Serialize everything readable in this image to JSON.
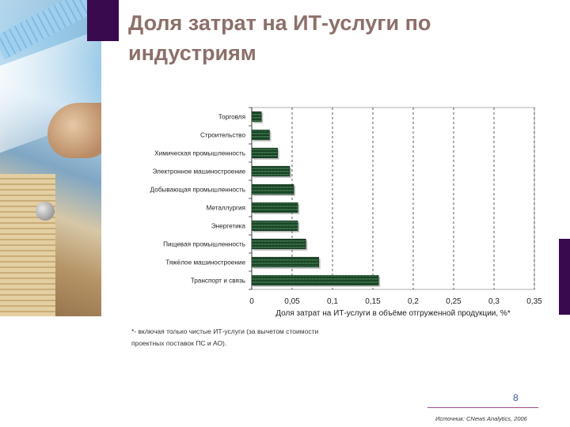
{
  "title": "Доля затрат на ИТ-услуги по индустриям",
  "chart_data": {
    "type": "bar",
    "orientation": "horizontal",
    "categories": [
      "Торговля",
      "Строительство",
      "Химическая промышленность",
      "Электронное машиностроение",
      "Добывающая промышленность",
      "Металлургия",
      "Энергетика",
      "Пищевая промышленность",
      "Тяжёлое машиностроение",
      "Транспорт и связь"
    ],
    "values": [
      0.012,
      0.022,
      0.032,
      0.047,
      0.052,
      0.057,
      0.057,
      0.067,
      0.083,
      0.157
    ],
    "xlabel": "Доля затрат на ИТ-услуги в объёме отгруженной продукции, %*",
    "ylabel": "",
    "xlim": [
      0,
      0.35
    ],
    "xticks": [
      "0",
      "0,05",
      "0,1",
      "0,15",
      "0,2",
      "0,25",
      "0,3",
      "0,35"
    ],
    "grid": "vertical dashed",
    "bar_color": "#1f4d2b"
  },
  "footnote": {
    "line1": "*- включая только чистые ИТ-услуги (за вычетом стоимости",
    "line2": "проектных поставок ПС и АО)."
  },
  "page_number": "8",
  "source": "Источник: CNews Analytics, 2006"
}
